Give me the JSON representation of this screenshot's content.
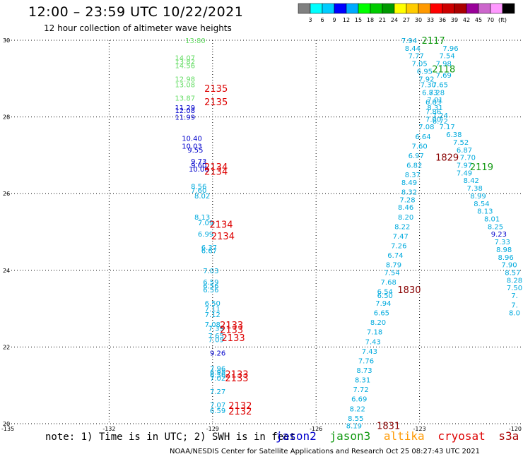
{
  "header": {
    "title": "12:00 – 23:59 UTC 10/22/2021",
    "subtitle": "12 hour collection of altimeter wave heights"
  },
  "footer": {
    "note": "note: 1) Time is in UTC; 2) SWH is in feet",
    "credit": "NOAA/NESDIS Center for Satellite Applications and Research   Oct 25 08:27:43 UTC 2021"
  },
  "legend": [
    {
      "label": "jason2",
      "color": "#0000cc"
    },
    {
      "label": "jason3",
      "color": "#119911"
    },
    {
      "label": "altika",
      "color": "#ff9900"
    },
    {
      "label": "cryosat",
      "color": "#dd0000"
    },
    {
      "label": "s3a",
      "color": "#aa0000"
    }
  ],
  "colorbar": {
    "colors": [
      "#808080",
      "#00ffff",
      "#00ccff",
      "#0000ff",
      "#00aaff",
      "#00ff00",
      "#00cc00",
      "#009900",
      "#ffff00",
      "#ffcc00",
      "#ff9900",
      "#ff0000",
      "#cc0000",
      "#aa0000",
      "#990099",
      "#cc66cc",
      "#ff99ff",
      "#000000"
    ],
    "labels": [
      "3",
      "6",
      "9",
      "12",
      "15",
      "18",
      "21",
      "24",
      "27",
      "30",
      "33",
      "36",
      "39",
      "42",
      "45",
      "70",
      "(ft)"
    ]
  },
  "chart_data": {
    "type": "scatter",
    "xlim": [
      -135,
      -120
    ],
    "ylim": [
      20,
      30
    ],
    "x_ticks": [
      "-135",
      "-132",
      "-129",
      "-126",
      "-123",
      "-120"
    ],
    "y_ticks": [
      "20",
      "22",
      "24",
      "26",
      "28",
      "30"
    ],
    "grid": true,
    "points": [
      {
        "lon": -129.5,
        "lat": 30.0,
        "text": "13.80",
        "color": "#66dd66"
      },
      {
        "lon": -129.8,
        "lat": 29.55,
        "text": "14.07",
        "color": "#66dd66"
      },
      {
        "lon": -129.8,
        "lat": 29.45,
        "text": "13.82",
        "color": "#66dd66"
      },
      {
        "lon": -129.8,
        "lat": 29.35,
        "text": "14.56",
        "color": "#66dd66"
      },
      {
        "lon": -129.8,
        "lat": 29.0,
        "text": "12.98",
        "color": "#66dd66"
      },
      {
        "lon": -129.8,
        "lat": 28.85,
        "text": "13.08",
        "color": "#66dd66"
      },
      {
        "lon": -129.8,
        "lat": 28.5,
        "text": "13.87",
        "color": "#66dd66"
      },
      {
        "lon": -129.8,
        "lat": 28.25,
        "text": "11.29",
        "color": "#0000cc"
      },
      {
        "lon": -129.8,
        "lat": 28.18,
        "text": "12.08",
        "color": "#0000cc"
      },
      {
        "lon": -129.8,
        "lat": 28.0,
        "text": "11.99",
        "color": "#0000cc"
      },
      {
        "lon": -129.6,
        "lat": 27.45,
        "text": "10.40",
        "color": "#0000cc"
      },
      {
        "lon": -129.6,
        "lat": 27.25,
        "text": "10.03",
        "color": "#0000cc"
      },
      {
        "lon": -129.5,
        "lat": 27.15,
        "text": "9.55",
        "color": "#0000cc"
      },
      {
        "lon": -129.4,
        "lat": 26.85,
        "text": "9.73",
        "color": "#0000cc"
      },
      {
        "lon": -129.4,
        "lat": 26.75,
        "text": "9.60",
        "color": "#0000cc"
      },
      {
        "lon": -129.4,
        "lat": 26.65,
        "text": "10.06",
        "color": "#0000cc"
      },
      {
        "lon": -129.4,
        "lat": 26.2,
        "text": "8.56",
        "color": "#00aadd"
      },
      {
        "lon": -129.4,
        "lat": 26.1,
        "text": "7.60",
        "color": "#00aadd"
      },
      {
        "lon": -129.3,
        "lat": 25.95,
        "text": "8.02",
        "color": "#00aadd"
      },
      {
        "lon": -129.3,
        "lat": 25.4,
        "text": "8.13",
        "color": "#00aadd"
      },
      {
        "lon": -129.2,
        "lat": 25.25,
        "text": "7.09",
        "color": "#00aadd"
      },
      {
        "lon": -129.2,
        "lat": 24.95,
        "text": "6.99",
        "color": "#00aadd"
      },
      {
        "lon": -129.1,
        "lat": 24.6,
        "text": "6.37",
        "color": "#00aadd"
      },
      {
        "lon": -129.1,
        "lat": 24.52,
        "text": "6.67",
        "color": "#00aadd"
      },
      {
        "lon": -129.05,
        "lat": 24.0,
        "text": "7.03",
        "color": "#00aadd"
      },
      {
        "lon": -129.05,
        "lat": 23.7,
        "text": "6.59",
        "color": "#00aadd"
      },
      {
        "lon": -129.05,
        "lat": 23.6,
        "text": "6.56",
        "color": "#00aadd"
      },
      {
        "lon": -129.05,
        "lat": 23.5,
        "text": "6.56",
        "color": "#00aadd"
      },
      {
        "lon": -129.0,
        "lat": 23.15,
        "text": "6.50",
        "color": "#00aadd"
      },
      {
        "lon": -129.0,
        "lat": 23.0,
        "text": "7.11",
        "color": "#00aadd"
      },
      {
        "lon": -129.0,
        "lat": 22.85,
        "text": "7.12",
        "color": "#00aadd"
      },
      {
        "lon": -129.0,
        "lat": 22.6,
        "text": "7.08",
        "color": "#00aadd"
      },
      {
        "lon": -128.9,
        "lat": 22.5,
        "text": "7.39",
        "color": "#00aadd"
      },
      {
        "lon": -128.9,
        "lat": 22.3,
        "text": "7.65",
        "color": "#00aadd"
      },
      {
        "lon": -128.9,
        "lat": 22.2,
        "text": "7.09",
        "color": "#00aadd"
      },
      {
        "lon": -128.85,
        "lat": 21.85,
        "text": "9.26",
        "color": "#0000cc"
      },
      {
        "lon": -128.85,
        "lat": 21.45,
        "text": "7.96",
        "color": "#00aadd"
      },
      {
        "lon": -128.85,
        "lat": 21.35,
        "text": "6.98",
        "color": "#00aadd"
      },
      {
        "lon": -128.85,
        "lat": 21.28,
        "text": "6.56",
        "color": "#00aadd"
      },
      {
        "lon": -128.85,
        "lat": 21.2,
        "text": "7.02",
        "color": "#00aadd"
      },
      {
        "lon": -128.85,
        "lat": 20.85,
        "text": "7.27",
        "color": "#00aadd"
      },
      {
        "lon": -128.85,
        "lat": 20.5,
        "text": "7.07",
        "color": "#00aadd"
      },
      {
        "lon": -128.85,
        "lat": 20.35,
        "text": "6.59",
        "color": "#00aadd"
      },
      {
        "lon": -123.3,
        "lat": 30.0,
        "text": "7.94",
        "color": "#00aadd"
      },
      {
        "lon": -122.1,
        "lat": 29.8,
        "text": "7.96",
        "color": "#00aadd"
      },
      {
        "lon": -123.2,
        "lat": 29.8,
        "text": "8.44",
        "color": "#00aadd"
      },
      {
        "lon": -122.2,
        "lat": 29.6,
        "text": "7.54",
        "color": "#00aadd"
      },
      {
        "lon": -123.1,
        "lat": 29.6,
        "text": "7.77",
        "color": "#00aadd"
      },
      {
        "lon": -122.3,
        "lat": 29.4,
        "text": "7.98",
        "color": "#00aadd"
      },
      {
        "lon": -123.0,
        "lat": 29.4,
        "text": "7.05",
        "color": "#00aadd"
      },
      {
        "lon": -122.85,
        "lat": 29.2,
        "text": "6.95",
        "color": "#00aadd"
      },
      {
        "lon": -122.3,
        "lat": 29.1,
        "text": "7.69",
        "color": "#00aadd"
      },
      {
        "lon": -122.8,
        "lat": 29.0,
        "text": "7.92",
        "color": "#00aadd"
      },
      {
        "lon": -122.4,
        "lat": 28.85,
        "text": "7.65",
        "color": "#00aadd"
      },
      {
        "lon": -122.75,
        "lat": 28.85,
        "text": "7.30",
        "color": "#00aadd"
      },
      {
        "lon": -122.5,
        "lat": 28.65,
        "text": "7.28",
        "color": "#00aadd"
      },
      {
        "lon": -122.7,
        "lat": 28.65,
        "text": "6.83",
        "color": "#00aadd"
      },
      {
        "lon": -122.55,
        "lat": 28.45,
        "text": "7.01",
        "color": "#00aadd"
      },
      {
        "lon": -122.6,
        "lat": 28.4,
        "text": "6.83",
        "color": "#00aadd"
      },
      {
        "lon": -122.55,
        "lat": 28.25,
        "text": "8.31",
        "color": "#00aadd"
      },
      {
        "lon": -122.6,
        "lat": 28.15,
        "text": "7.86",
        "color": "#00aadd"
      },
      {
        "lon": -122.4,
        "lat": 28.05,
        "text": "7.24",
        "color": "#00aadd"
      },
      {
        "lon": -122.6,
        "lat": 27.95,
        "text": "7.00",
        "color": "#00aadd"
      },
      {
        "lon": -122.4,
        "lat": 27.9,
        "text": "6.72",
        "color": "#00aadd"
      },
      {
        "lon": -122.8,
        "lat": 27.75,
        "text": "7.08",
        "color": "#00aadd"
      },
      {
        "lon": -122.2,
        "lat": 27.75,
        "text": "7.17",
        "color": "#00aadd"
      },
      {
        "lon": -122.9,
        "lat": 27.5,
        "text": "6.64",
        "color": "#00aadd"
      },
      {
        "lon": -122.0,
        "lat": 27.55,
        "text": "6.38",
        "color": "#00aadd"
      },
      {
        "lon": -123.0,
        "lat": 27.25,
        "text": "7.60",
        "color": "#00aadd"
      },
      {
        "lon": -121.8,
        "lat": 27.35,
        "text": "7.52",
        "color": "#00aadd"
      },
      {
        "lon": -123.1,
        "lat": 27.0,
        "text": "6.97",
        "color": "#00aadd"
      },
      {
        "lon": -121.7,
        "lat": 27.15,
        "text": "6.87",
        "color": "#00aadd"
      },
      {
        "lon": -121.6,
        "lat": 26.95,
        "text": "7.70",
        "color": "#00aadd"
      },
      {
        "lon": -123.15,
        "lat": 26.75,
        "text": "6.82",
        "color": "#00aadd"
      },
      {
        "lon": -121.7,
        "lat": 26.75,
        "text": "7.97",
        "color": "#00aadd"
      },
      {
        "lon": -123.2,
        "lat": 26.5,
        "text": "8.37",
        "color": "#00aadd"
      },
      {
        "lon": -121.7,
        "lat": 26.55,
        "text": "7.49",
        "color": "#00aadd"
      },
      {
        "lon": -123.3,
        "lat": 26.3,
        "text": "8.49",
        "color": "#00aadd"
      },
      {
        "lon": -121.5,
        "lat": 26.35,
        "text": "8.42",
        "color": "#00aadd"
      },
      {
        "lon": -123.3,
        "lat": 26.05,
        "text": "8.32",
        "color": "#00aadd"
      },
      {
        "lon": -121.4,
        "lat": 26.15,
        "text": "7.38",
        "color": "#00aadd"
      },
      {
        "lon": -123.35,
        "lat": 25.85,
        "text": "7.28",
        "color": "#00aadd"
      },
      {
        "lon": -121.3,
        "lat": 25.95,
        "text": "8.99",
        "color": "#00aadd"
      },
      {
        "lon": -123.4,
        "lat": 25.65,
        "text": "8.46",
        "color": "#00aadd"
      },
      {
        "lon": -121.2,
        "lat": 25.75,
        "text": "8.54",
        "color": "#00aadd"
      },
      {
        "lon": -123.4,
        "lat": 25.4,
        "text": "8.20",
        "color": "#00aadd"
      },
      {
        "lon": -121.1,
        "lat": 25.55,
        "text": "8.13",
        "color": "#00aadd"
      },
      {
        "lon": -123.5,
        "lat": 25.15,
        "text": "8.22",
        "color": "#00aadd"
      },
      {
        "lon": -120.9,
        "lat": 25.35,
        "text": "8.01",
        "color": "#00aadd"
      },
      {
        "lon": -123.55,
        "lat": 24.9,
        "text": "7.47",
        "color": "#00aadd"
      },
      {
        "lon": -120.8,
        "lat": 25.15,
        "text": "8.25",
        "color": "#00aadd"
      },
      {
        "lon": -120.7,
        "lat": 24.95,
        "text": "9.23",
        "color": "#0000cc"
      },
      {
        "lon": -123.6,
        "lat": 24.65,
        "text": "7.26",
        "color": "#00aadd"
      },
      {
        "lon": -120.6,
        "lat": 24.75,
        "text": "7.33",
        "color": "#00aadd"
      },
      {
        "lon": -123.7,
        "lat": 24.4,
        "text": "6.74",
        "color": "#00aadd"
      },
      {
        "lon": -120.55,
        "lat": 24.55,
        "text": "8.98",
        "color": "#00aadd"
      },
      {
        "lon": -123.75,
        "lat": 24.15,
        "text": "8.79",
        "color": "#00aadd"
      },
      {
        "lon": -120.5,
        "lat": 24.35,
        "text": "8.96",
        "color": "#00aadd"
      },
      {
        "lon": -120.4,
        "lat": 24.15,
        "text": "7.90",
        "color": "#00aadd"
      },
      {
        "lon": -123.8,
        "lat": 23.95,
        "text": "7.54",
        "color": "#00aadd"
      },
      {
        "lon": -120.3,
        "lat": 23.95,
        "text": "8.57",
        "color": "#00aadd"
      },
      {
        "lon": -123.9,
        "lat": 23.7,
        "text": "7.68",
        "color": "#00aadd"
      },
      {
        "lon": -120.2,
        "lat": 23.75,
        "text": "8.28",
        "color": "#00aadd"
      },
      {
        "lon": -120.15,
        "lat": 23.55,
        "text": "7.50",
        "color": "#00aadd"
      },
      {
        "lon": -124.0,
        "lat": 23.45,
        "text": "6.54",
        "color": "#00aadd"
      },
      {
        "lon": -124.0,
        "lat": 23.35,
        "text": "6.50",
        "color": "#00aadd"
      },
      {
        "lon": -120.1,
        "lat": 23.35,
        "text": "7.",
        "color": "#00aadd"
      },
      {
        "lon": -124.05,
        "lat": 23.15,
        "text": "7.94",
        "color": "#00aadd"
      },
      {
        "lon": -120.0,
        "lat": 23.1,
        "text": "7.",
        "color": "#00aadd"
      },
      {
        "lon": -124.1,
        "lat": 22.9,
        "text": "6.65",
        "color": "#00aadd"
      },
      {
        "lon": -124.2,
        "lat": 22.65,
        "text": "8.20",
        "color": "#00aadd"
      },
      {
        "lon": -120.0,
        "lat": 22.9,
        "text": "8.0",
        "color": "#00aadd"
      },
      {
        "lon": -124.3,
        "lat": 22.4,
        "text": "7.18",
        "color": "#00aadd"
      },
      {
        "lon": -124.35,
        "lat": 22.15,
        "text": "7.43",
        "color": "#00aadd"
      },
      {
        "lon": -124.45,
        "lat": 21.9,
        "text": "7.43",
        "color": "#00aadd"
      },
      {
        "lon": -124.55,
        "lat": 21.65,
        "text": "7.76",
        "color": "#00aadd"
      },
      {
        "lon": -124.6,
        "lat": 21.4,
        "text": "8.73",
        "color": "#00aadd"
      },
      {
        "lon": -124.65,
        "lat": 21.15,
        "text": "8.31",
        "color": "#00aadd"
      },
      {
        "lon": -124.7,
        "lat": 20.9,
        "text": "7.72",
        "color": "#00aadd"
      },
      {
        "lon": -124.75,
        "lat": 20.65,
        "text": "6.69",
        "color": "#00aadd"
      },
      {
        "lon": -124.8,
        "lat": 20.4,
        "text": "8.22",
        "color": "#00aadd"
      },
      {
        "lon": -124.85,
        "lat": 20.15,
        "text": "8.55",
        "color": "#00aadd"
      },
      {
        "lon": -124.9,
        "lat": 19.95,
        "text": "8.19",
        "color": "#00aadd"
      }
    ],
    "pass_labels": [
      {
        "lon": -128.9,
        "lat": 28.75,
        "text": "2135",
        "color": "#dd0000"
      },
      {
        "lon": -128.9,
        "lat": 28.4,
        "text": "2135",
        "color": "#dd0000"
      },
      {
        "lon": -128.9,
        "lat": 26.7,
        "text": "2134",
        "color": "#dd0000"
      },
      {
        "lon": -128.9,
        "lat": 26.58,
        "text": "2134",
        "color": "#dd0000"
      },
      {
        "lon": -128.75,
        "lat": 25.2,
        "text": "2134",
        "color": "#dd0000"
      },
      {
        "lon": -128.7,
        "lat": 24.9,
        "text": "2134",
        "color": "#dd0000"
      },
      {
        "lon": -128.45,
        "lat": 22.58,
        "text": "2133",
        "color": "#dd0000"
      },
      {
        "lon": -128.45,
        "lat": 22.46,
        "text": "2133",
        "color": "#dd0000"
      },
      {
        "lon": -128.4,
        "lat": 22.25,
        "text": "2133",
        "color": "#dd0000"
      },
      {
        "lon": -128.3,
        "lat": 21.3,
        "text": "2133",
        "color": "#dd0000"
      },
      {
        "lon": -128.3,
        "lat": 21.2,
        "text": "2133",
        "color": "#dd0000"
      },
      {
        "lon": -128.2,
        "lat": 20.48,
        "text": "2132",
        "color": "#dd0000"
      },
      {
        "lon": -128.2,
        "lat": 20.33,
        "text": "2132",
        "color": "#dd0000"
      },
      {
        "lon": -122.6,
        "lat": 30.0,
        "text": "2117",
        "color": "#119911"
      },
      {
        "lon": -122.3,
        "lat": 29.25,
        "text": "2118",
        "color": "#119911"
      },
      {
        "lon": -121.2,
        "lat": 26.7,
        "text": "2119",
        "color": "#119911"
      },
      {
        "lon": -122.2,
        "lat": 26.95,
        "text": "1829",
        "color": "#880000"
      },
      {
        "lon": -123.3,
        "lat": 23.5,
        "text": "1830",
        "color": "#880000"
      },
      {
        "lon": -123.9,
        "lat": 19.95,
        "text": "1831",
        "color": "#880000"
      }
    ]
  }
}
